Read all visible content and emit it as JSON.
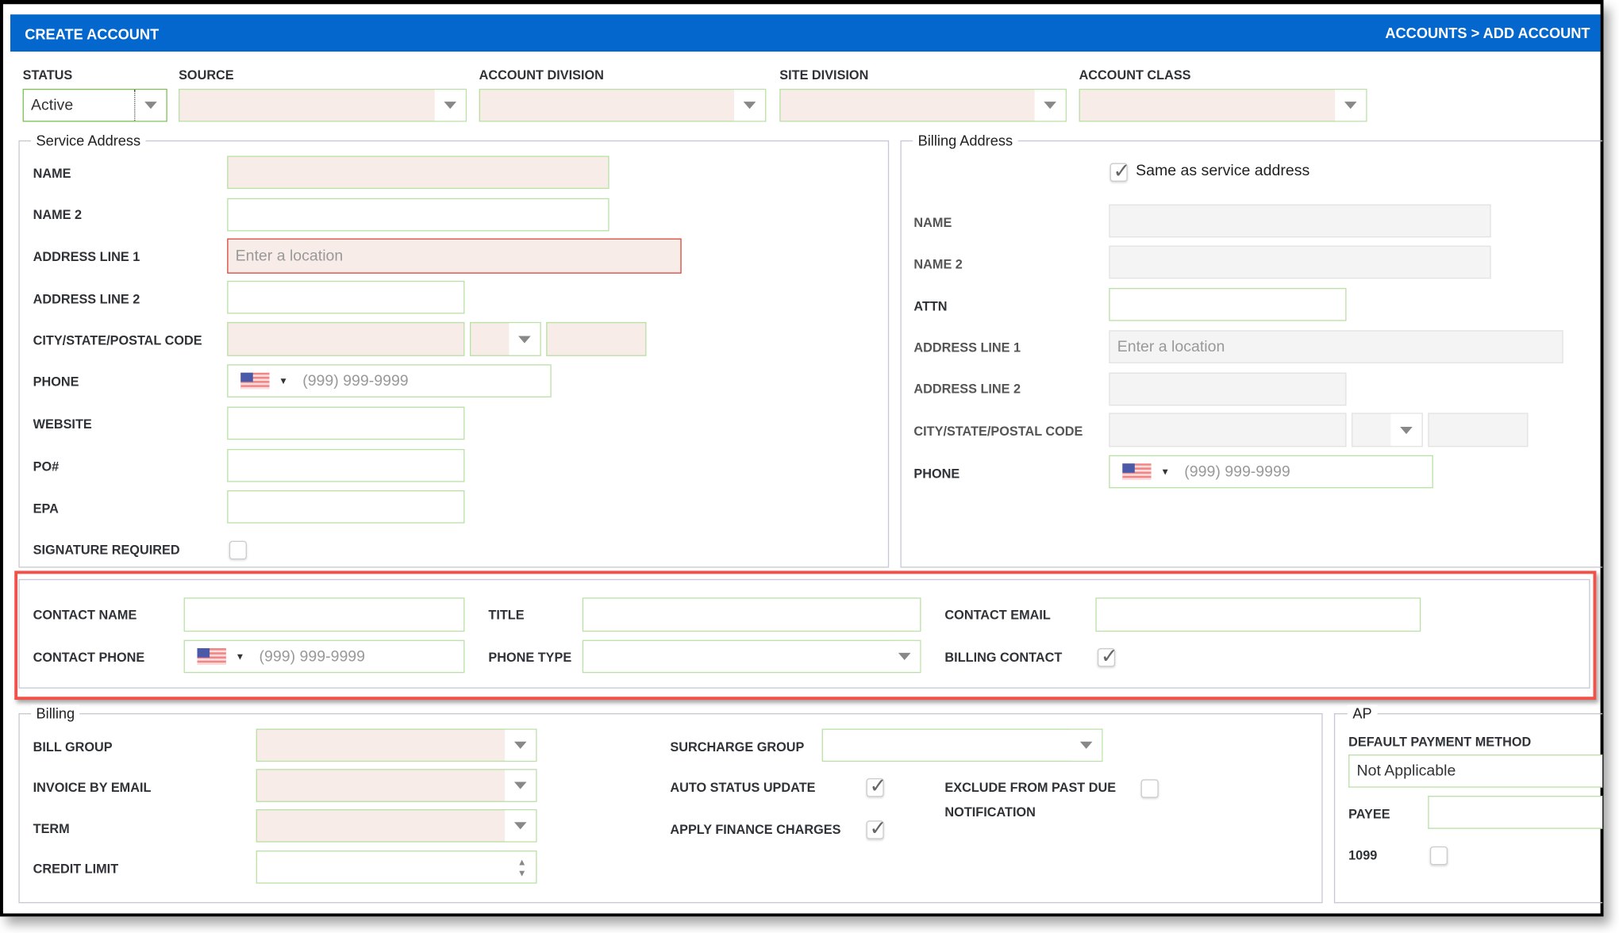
{
  "header": {
    "title": "CREATE ACCOUNT",
    "breadcrumb": "ACCOUNTS > ADD ACCOUNT"
  },
  "top": {
    "status": {
      "label": "STATUS",
      "value": "Active"
    },
    "source": {
      "label": "SOURCE"
    },
    "account_division": {
      "label": "ACCOUNT DIVISION"
    },
    "site_division": {
      "label": "SITE DIVISION"
    },
    "account_class": {
      "label": "ACCOUNT CLASS"
    }
  },
  "service": {
    "legend": "Service Address",
    "name": "NAME",
    "name2": "NAME 2",
    "address1": "ADDRESS LINE 1",
    "address1_placeholder": "Enter a location",
    "address2": "ADDRESS LINE 2",
    "city": "CITY/STATE/POSTAL CODE",
    "phone": "PHONE",
    "phone_placeholder": "(999) 999-9999",
    "website": "WEBSITE",
    "po": "PO#",
    "epa": "EPA",
    "signature": "SIGNATURE REQUIRED",
    "signature_checked": false
  },
  "billing_address": {
    "legend": "Billing Address",
    "same_as": "Same as service address",
    "same_as_checked": true,
    "name": "NAME",
    "name2": "NAME 2",
    "attn": "ATTN",
    "address1": "ADDRESS LINE 1",
    "address1_placeholder": "Enter a location",
    "address2": "ADDRESS LINE 2",
    "city": "CITY/STATE/POSTAL CODE",
    "phone": "PHONE",
    "phone_placeholder": "(999) 999-9999"
  },
  "contact": {
    "name": "CONTACT NAME",
    "title": "TITLE",
    "email": "CONTACT EMAIL",
    "phone": "CONTACT PHONE",
    "phone_placeholder": "(999) 999-9999",
    "phone_type": "PHONE TYPE",
    "billing_contact": "BILLING CONTACT",
    "billing_contact_checked": true,
    "highlight_color": "#f0524a"
  },
  "billing": {
    "legend": "Billing",
    "bill_group": "BILL GROUP",
    "invoice_by_email": "INVOICE BY EMAIL",
    "term": "TERM",
    "credit_limit": "CREDIT LIMIT",
    "surcharge_group": "SURCHARGE GROUP",
    "auto_status_update": "AUTO STATUS UPDATE",
    "auto_status_update_checked": true,
    "apply_finance_charges": "APPLY FINANCE CHARGES",
    "apply_finance_charges_checked": true,
    "exclude_line1": "EXCLUDE FROM PAST DUE",
    "exclude_line2": "NOTIFICATION",
    "exclude_checked": false
  },
  "ap": {
    "legend": "AP",
    "default_payment_method": "DEFAULT PAYMENT METHOD",
    "payment_value": "Not Applicable",
    "payee": "PAYEE",
    "form1099": "1099",
    "form1099_checked": false
  },
  "colors": {
    "header": "#0367cd",
    "required_fill": "#f7ece8",
    "valid_border": "#b9e0a5",
    "error_border": "#d9463b"
  }
}
